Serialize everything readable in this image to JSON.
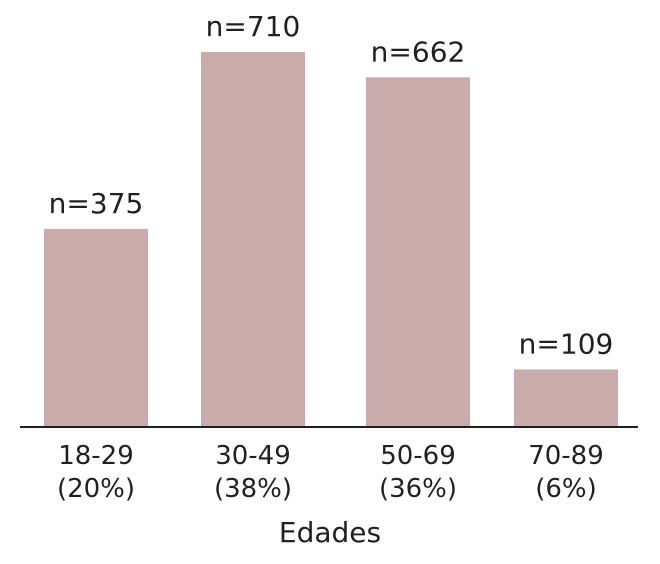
{
  "chart_data": {
    "type": "bar",
    "categories": [
      "18-29",
      "30-49",
      "50-69",
      "70-89"
    ],
    "category_percents": [
      "(20%)",
      "(38%)",
      "(36%)",
      "(6%)"
    ],
    "values": [
      375,
      710,
      662,
      109
    ],
    "data_labels": [
      "n=375",
      "n=710",
      "n=662",
      "n=109"
    ],
    "xlabel": "Edades",
    "ylabel": "",
    "ylim": [
      0,
      710
    ],
    "grid": false,
    "legend": "none",
    "bar_color": "#c9abac",
    "axis_color": "#231f20",
    "text_color": "#231f20"
  }
}
